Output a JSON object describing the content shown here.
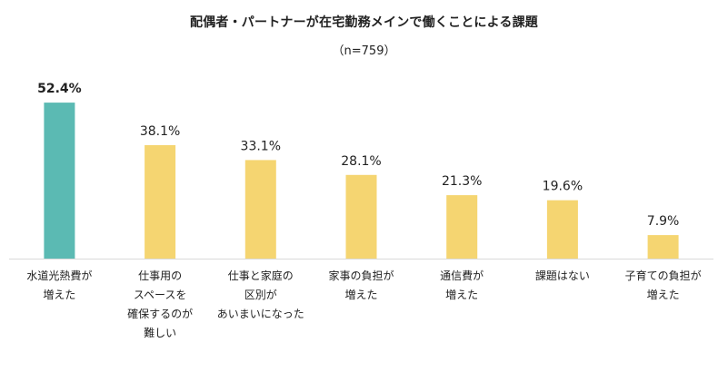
{
  "chart_data": {
    "type": "bar",
    "title": "配偶者・パートナーが在宅勤務メインで働くことによる課題",
    "subtitle": "（n=759）",
    "categories": [
      [
        "水道光熱費が",
        "増えた"
      ],
      [
        "仕事用の",
        "スペースを",
        "確保するのが",
        "難しい"
      ],
      [
        "仕事と家庭の",
        "区別が",
        "あいまいになった"
      ],
      [
        "家事の負担が",
        "増えた"
      ],
      [
        "通信費が",
        "増えた"
      ],
      [
        "課題はない"
      ],
      [
        "子育ての負担が",
        "増えた"
      ]
    ],
    "values": [
      52.4,
      38.1,
      33.1,
      28.1,
      21.3,
      19.6,
      7.9
    ],
    "value_labels": [
      "52.4%",
      "38.1%",
      "33.1%",
      "28.1%",
      "21.3%",
      "19.6%",
      "7.9%"
    ],
    "highlight_index": 0,
    "ylim": [
      0,
      60
    ],
    "grid": false,
    "colors": {
      "highlight": "#5BBAB3",
      "default": "#F5D571",
      "baseline": "#D9D9D9"
    }
  }
}
